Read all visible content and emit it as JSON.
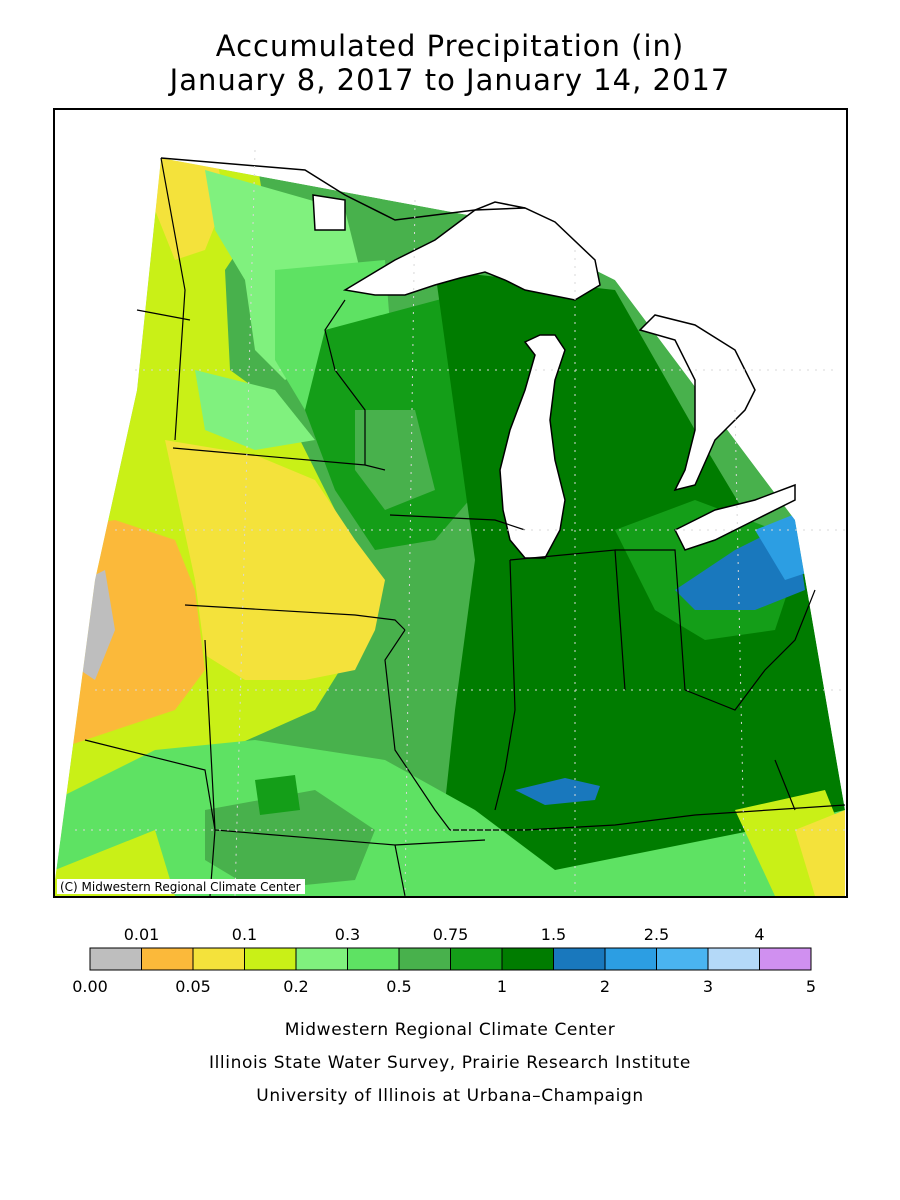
{
  "title": {
    "line1": "Accumulated Precipitation (in)",
    "line2": "January 8, 2017 to January 14, 2017"
  },
  "map": {
    "copyright": "(C) Midwestern Regional Climate Center",
    "colors": {
      "land_outside": "#ffffff",
      "lakes": "#ffffff",
      "boundary": "#000000"
    }
  },
  "legend": {
    "bins": [
      {
        "color": "#bebebe"
      },
      {
        "color": "#fbb93a"
      },
      {
        "color": "#f4e23b"
      },
      {
        "color": "#c9f017"
      },
      {
        "color": "#80f17e"
      },
      {
        "color": "#5ee263"
      },
      {
        "color": "#48b14c"
      },
      {
        "color": "#149e18"
      },
      {
        "color": "#007c00"
      },
      {
        "color": "#1978bd"
      },
      {
        "color": "#2c9ee3"
      },
      {
        "color": "#4ab4f0"
      },
      {
        "color": "#b4d9f8"
      },
      {
        "color": "#d090f0"
      }
    ],
    "top_labels": [
      "0.01",
      "0.1",
      "0.3",
      "0.75",
      "1.5",
      "2.5",
      "4"
    ],
    "bottom_labels": [
      "0.00",
      "0.05",
      "0.2",
      "0.5",
      "1",
      "2",
      "3",
      "5"
    ]
  },
  "credits": {
    "line1": "Midwestern Regional Climate Center",
    "line2": "Illinois State Water Survey, Prairie Research Institute",
    "line3": "University of Illinois at Urbana–Champaign"
  }
}
